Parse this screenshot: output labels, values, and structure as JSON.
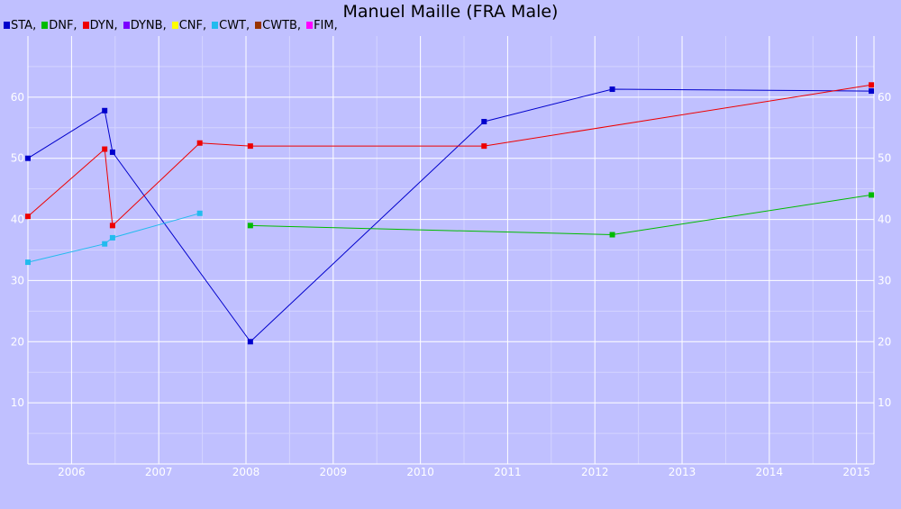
{
  "chart_data": {
    "type": "line",
    "title": "Manuel Maille (FRA Male)",
    "xlabel": "",
    "ylabel": "",
    "xlim": [
      2005.5,
      2015.2
    ],
    "ylim": [
      0,
      70
    ],
    "x_ticks": [
      "2006",
      "2007",
      "2008",
      "2009",
      "2010",
      "2011",
      "2012",
      "2013",
      "2014",
      "2015"
    ],
    "y_ticks": [
      "10",
      "20",
      "30",
      "40",
      "50",
      "60"
    ],
    "grid": true,
    "legend_position": "top-left",
    "legend": [
      {
        "name": "STA",
        "label": "STA,",
        "color": "#0000cc"
      },
      {
        "name": "DNF",
        "label": "DNF,",
        "color": "#00bb00"
      },
      {
        "name": "DYN",
        "label": "DYN,",
        "color": "#ee0000"
      },
      {
        "name": "DYNB",
        "label": "DYNB,",
        "color": "#7a00ff"
      },
      {
        "name": "CNF",
        "label": "CNF,",
        "color": "#ffff00"
      },
      {
        "name": "CWT",
        "label": "CWT,",
        "color": "#22bbee"
      },
      {
        "name": "CWTB",
        "label": "CWTB,",
        "color": "#993300"
      },
      {
        "name": "FIM",
        "label": "FIM,",
        "color": "#ff00ff"
      }
    ],
    "series": [
      {
        "name": "STA",
        "color": "#0000cc",
        "points": [
          [
            2005.5,
            50
          ],
          [
            2006.38,
            57.8
          ],
          [
            2006.47,
            51
          ],
          [
            2008.05,
            20
          ],
          [
            2010.73,
            56
          ],
          [
            2012.2,
            61.3
          ],
          [
            2015.17,
            61
          ]
        ]
      },
      {
        "name": "DNF",
        "color": "#00bb00",
        "points": [
          [
            2008.05,
            39
          ],
          [
            2012.2,
            37.5
          ],
          [
            2015.17,
            44
          ]
        ]
      },
      {
        "name": "DYN",
        "color": "#ee0000",
        "points": [
          [
            2005.5,
            40.5
          ],
          [
            2006.38,
            51.5
          ],
          [
            2006.47,
            39
          ],
          [
            2007.47,
            52.5
          ],
          [
            2008.05,
            52
          ],
          [
            2010.73,
            52
          ],
          [
            2015.17,
            62
          ]
        ]
      },
      {
        "name": "CWT",
        "color": "#22bbee",
        "points": [
          [
            2005.5,
            33
          ],
          [
            2006.38,
            36
          ],
          [
            2006.47,
            37
          ],
          [
            2007.47,
            41
          ]
        ]
      }
    ]
  }
}
